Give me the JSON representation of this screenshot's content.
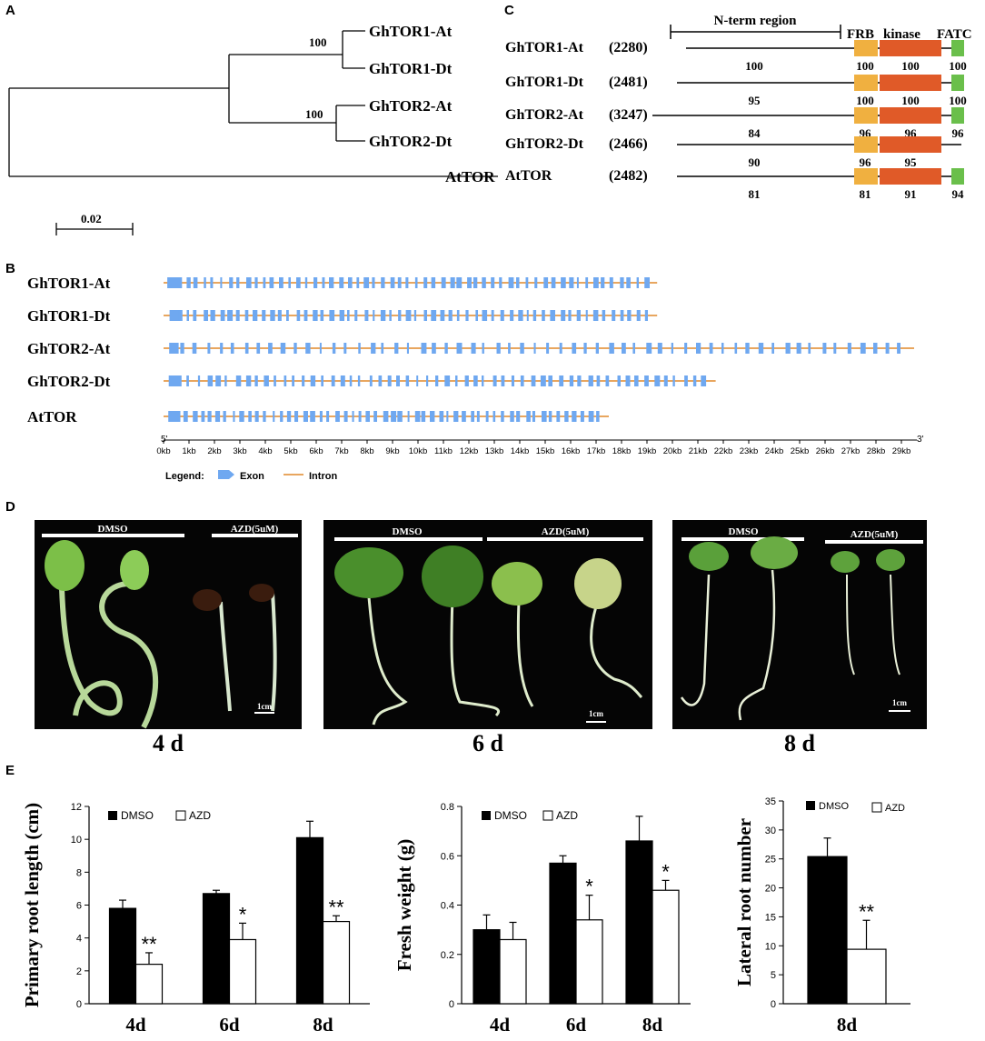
{
  "panel_letters": {
    "A": "A",
    "B": "B",
    "C": "C",
    "D": "D",
    "E": "E"
  },
  "panel_a": {
    "taxa": [
      "GhTOR1-At",
      "GhTOR1-Dt",
      "GhTOR2-At",
      "GhTOR2-Dt",
      "AtTOR"
    ],
    "bootstrap": [
      "100",
      "100"
    ],
    "scale_label": "0.02"
  },
  "panel_c": {
    "region_label": "N-term region",
    "domain_headers": [
      "FRB",
      "kinase",
      "FATC"
    ],
    "colors": {
      "FRB": "#f0b040",
      "kinase": "#e05a28",
      "FATC": "#6abf4b"
    },
    "proteins": [
      {
        "name": "GhTOR1-At",
        "length": "(2280)",
        "nterm": "100",
        "frb": "100",
        "kinase": "100",
        "fatc": "100",
        "has_fatc": true
      },
      {
        "name": "GhTOR1-Dt",
        "length": "(2481)",
        "nterm": "95",
        "frb": "100",
        "kinase": "100",
        "fatc": "100",
        "has_fatc": true
      },
      {
        "name": "GhTOR2-At",
        "length": "(3247)",
        "nterm": "84",
        "frb": "96",
        "kinase": "96",
        "fatc": "96",
        "has_fatc": true
      },
      {
        "name": "GhTOR2-Dt",
        "length": "(2466)",
        "nterm": "90",
        "frb": "96",
        "kinase": "95",
        "fatc": "",
        "has_fatc": false
      },
      {
        "name": "AtTOR",
        "length": "(2482)",
        "nterm": "81",
        "frb": "81",
        "kinase": "91",
        "fatc": "94",
        "has_fatc": true
      }
    ]
  },
  "panel_b": {
    "genes": [
      "GhTOR1-At",
      "GhTOR1-Dt",
      "GhTOR2-At",
      "GhTOR2-Dt",
      "AtTOR"
    ],
    "gene_lengths_kb": [
      19.4,
      19.4,
      29.5,
      21.7,
      17.5
    ],
    "exon_counts": [
      57,
      57,
      59,
      57,
      55
    ],
    "exon_color": "#6fa8f0",
    "intron_color": "#e0882a",
    "end5": "5'",
    "end3": "3'",
    "axis_ticks": [
      "0kb",
      "1kb",
      "2kb",
      "3kb",
      "4kb",
      "5kb",
      "6kb",
      "7kb",
      "8kb",
      "9kb",
      "10kb",
      "11kb",
      "12kb",
      "13kb",
      "14kb",
      "15kb",
      "16kb",
      "17kb",
      "18kb",
      "19kb",
      "20kb",
      "21kb",
      "22kb",
      "23kb",
      "24kb",
      "25kb",
      "26kb",
      "27kb",
      "28kb",
      "29kb"
    ],
    "legend_title": "Legend:",
    "legend_exon": "Exon",
    "legend_intron": "Intron"
  },
  "panel_d": {
    "photos": [
      {
        "day": "4 d",
        "left_label": "DMSO",
        "right_label": "AZD(5uM)",
        "scale": "1cm"
      },
      {
        "day": "6 d",
        "left_label": "DMSO",
        "right_label": "AZD(5uM)",
        "scale": "1cm"
      },
      {
        "day": "8 d",
        "left_label": "DMSO",
        "right_label": "AZD(5uM)",
        "scale": "1cm"
      }
    ]
  },
  "chart_data": [
    {
      "type": "bar",
      "ylabel": "Primary root length  (cm)",
      "categories": [
        "4d",
        "6d",
        "8d"
      ],
      "series": [
        {
          "name": "DMSO",
          "values": [
            5.8,
            6.7,
            10.1
          ],
          "errors": [
            0.5,
            0.2,
            1.0
          ]
        },
        {
          "name": "AZD",
          "values": [
            2.4,
            3.9,
            5.0
          ],
          "errors": [
            0.7,
            1.0,
            0.35
          ]
        }
      ],
      "significance": [
        "**",
        "*",
        "**"
      ],
      "ylim": [
        0,
        12
      ],
      "yticks": [
        "0",
        "2",
        "4",
        "6",
        "8",
        "10",
        "12"
      ]
    },
    {
      "type": "bar",
      "ylabel": "Fresh weight   (g)",
      "categories": [
        "4d",
        "6d",
        "8d"
      ],
      "series": [
        {
          "name": "DMSO",
          "values": [
            0.3,
            0.57,
            0.66
          ],
          "errors": [
            0.06,
            0.03,
            0.1
          ]
        },
        {
          "name": "AZD",
          "values": [
            0.26,
            0.34,
            0.46
          ],
          "errors": [
            0.07,
            0.1,
            0.04
          ]
        }
      ],
      "significance": [
        "",
        "*",
        "*"
      ],
      "ylim": [
        0,
        0.8
      ],
      "yticks": [
        "0",
        "0.2",
        "0.4",
        "0.6",
        "0.8"
      ]
    },
    {
      "type": "bar",
      "ylabel": "Lateral root number",
      "categories": [
        "8d"
      ],
      "series": [
        {
          "name": "DMSO",
          "values": [
            25.4
          ],
          "errors": [
            3.2
          ]
        },
        {
          "name": "AZD",
          "values": [
            9.4
          ],
          "errors": [
            5.0
          ]
        }
      ],
      "significance": [
        "**"
      ],
      "ylim": [
        0,
        35
      ],
      "yticks": [
        "0",
        "5",
        "10",
        "15",
        "20",
        "25",
        "30",
        "35"
      ]
    }
  ]
}
